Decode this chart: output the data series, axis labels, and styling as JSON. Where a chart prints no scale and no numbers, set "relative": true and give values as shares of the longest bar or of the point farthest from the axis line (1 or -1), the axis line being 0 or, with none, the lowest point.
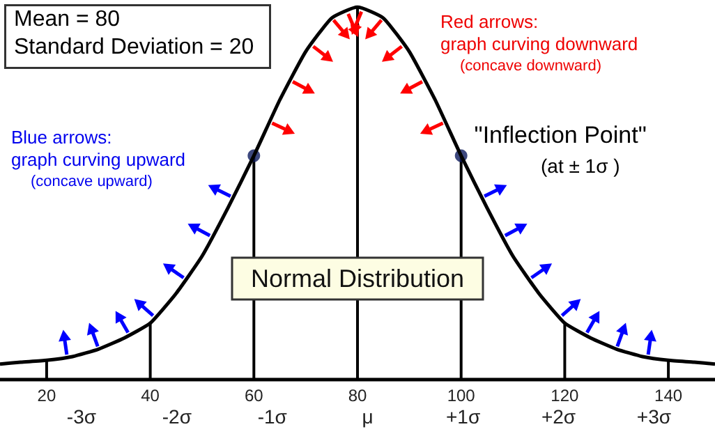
{
  "chart_data": {
    "type": "line",
    "title": "Normal Distribution",
    "relative": true,
    "grid": false,
    "x": [
      11,
      15,
      20,
      25,
      30,
      35,
      40,
      45,
      50,
      55,
      60,
      65,
      70,
      75,
      80,
      85,
      90,
      95,
      100,
      105,
      110,
      115,
      120,
      125,
      130,
      135,
      140,
      145,
      149
    ],
    "series": [
      {
        "values": [
          0.04,
          0.045,
          0.05,
          0.06,
          0.08,
          0.11,
          0.15,
          0.23,
          0.33,
          0.46,
          0.6,
          0.75,
          0.88,
          0.97,
          1,
          0.97,
          0.88,
          0.75,
          0.6,
          0.46,
          0.33,
          0.23,
          0.15,
          0.11,
          0.08,
          0.06,
          0.05,
          0.045,
          0.04
        ],
        "color": "#000000"
      },
      {
        "type": "bar",
        "x": [
          20,
          40,
          60,
          80,
          100,
          120,
          140
        ],
        "values": [
          0.05,
          0.15,
          0.6,
          1,
          0.6,
          0.15,
          0.05
        ],
        "color": "#000000"
      },
      {
        "type": "scatter",
        "x": [
          60,
          100
        ],
        "values": [
          0.6,
          0.6
        ],
        "color": "#0d1a5e"
      }
    ],
    "xlim": [
      11,
      149
    ],
    "xticks": [
      20,
      40,
      60,
      80,
      100,
      120,
      140
    ],
    "annotations": [
      "Mean = 80",
      "Standard Deviation = 20",
      "Blue arrows:",
      "graph curving upward",
      "(concave upward)",
      "Red arrows:",
      "graph curving downward",
      "(concave downward)",
      {
        "text": "\"Inflection Point\"",
        "x": 100,
        "y": 0.6
      },
      "(at ± 1σ )",
      "-3σ",
      "-2σ",
      "-1σ",
      "μ",
      "+1σ",
      "+2σ",
      "+3σ"
    ]
  }
}
